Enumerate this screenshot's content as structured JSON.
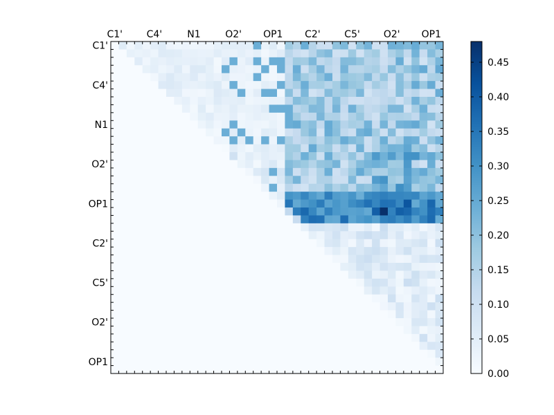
{
  "chart_data": {
    "type": "heatmap",
    "title": "",
    "xlabel": "",
    "ylabel": "",
    "n_rows": 42,
    "n_cols": 42,
    "x_tick_labels": [
      "C1'",
      "C4'",
      "N1",
      "O2'",
      "OP1",
      "C2'",
      "C5'",
      "O2'",
      "OP1"
    ],
    "y_tick_labels": [
      "C1'",
      "C4'",
      "N1",
      "O2'",
      "OP1",
      "C2'",
      "C5'",
      "O2'",
      "OP1"
    ],
    "x_tick_label_position": "top",
    "colormap": "Blues",
    "color_low": "#f7fbff",
    "color_high": "#08306b",
    "value_range": [
      0.0,
      0.48
    ],
    "colorbar": {
      "ticks": [
        0.0,
        0.05,
        0.1,
        0.15,
        0.2,
        0.25,
        0.3,
        0.35,
        0.4,
        0.45
      ],
      "tick_labels": [
        "0.00",
        "0.05",
        "0.10",
        "0.15",
        "0.20",
        "0.25",
        "0.30",
        "0.35",
        "0.40",
        "0.45"
      ],
      "placement": "right"
    },
    "matrix_structure": "upper triangular; lower triangle is zero",
    "approx_values": {
      "upper_left_block_typical": 0.04,
      "right_upper_region_typical": 0.18,
      "strong_band_rows_OP1": 0.32,
      "max_cell": 0.48,
      "lower_right_region_typical": 0.06
    }
  }
}
